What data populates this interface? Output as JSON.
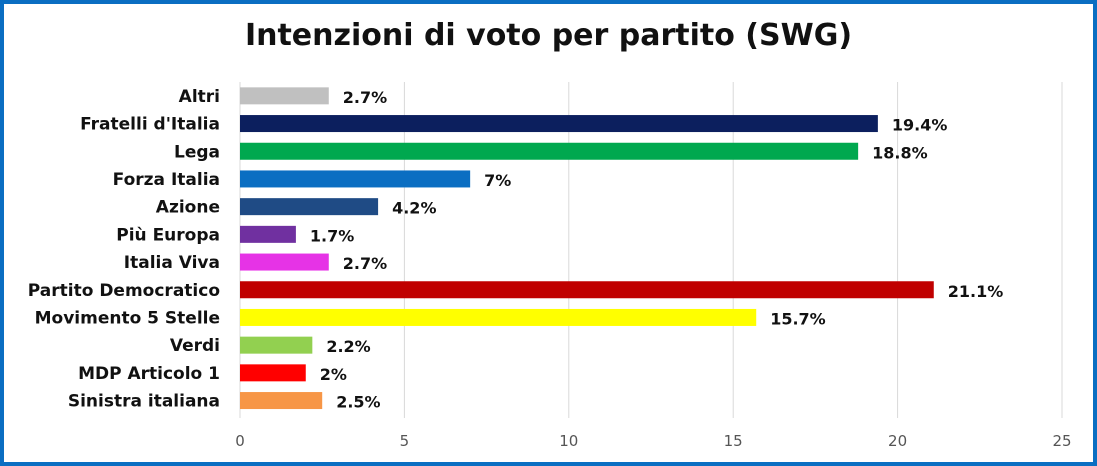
{
  "chart_data": {
    "type": "bar",
    "orientation": "horizontal",
    "title": "Intenzioni di voto per partito (SWG)",
    "xlabel": "",
    "ylabel": "",
    "xlim": [
      0,
      25
    ],
    "x_ticks": [
      "0",
      "5",
      "10",
      "15",
      "20",
      "25"
    ],
    "grid": true,
    "categories": [
      "Altri",
      "Fratelli d'Italia",
      "Lega",
      "Forza Italia",
      "Azione",
      "Più Europa",
      "Italia Viva",
      "Partito Democratico",
      "Movimento 5 Stelle",
      "Verdi",
      "MDP Articolo 1",
      "Sinistra italiana"
    ],
    "values": [
      2.7,
      19.4,
      18.8,
      7,
      4.2,
      1.7,
      2.7,
      21.1,
      15.7,
      2.2,
      2,
      2.5
    ],
    "value_labels": [
      "2.7%",
      "19.4%",
      "18.8%",
      "7%",
      "4.2%",
      "1.7%",
      "2.7%",
      "21.1%",
      "15.7%",
      "2.2%",
      "2%",
      "2.5%"
    ],
    "colors": [
      "#c0c0c0",
      "#0c1f5e",
      "#00a84f",
      "#0a6ec2",
      "#1f4b85",
      "#7030a0",
      "#e633e6",
      "#c00000",
      "#ffff00",
      "#92d050",
      "#ff0000",
      "#f79646"
    ]
  }
}
